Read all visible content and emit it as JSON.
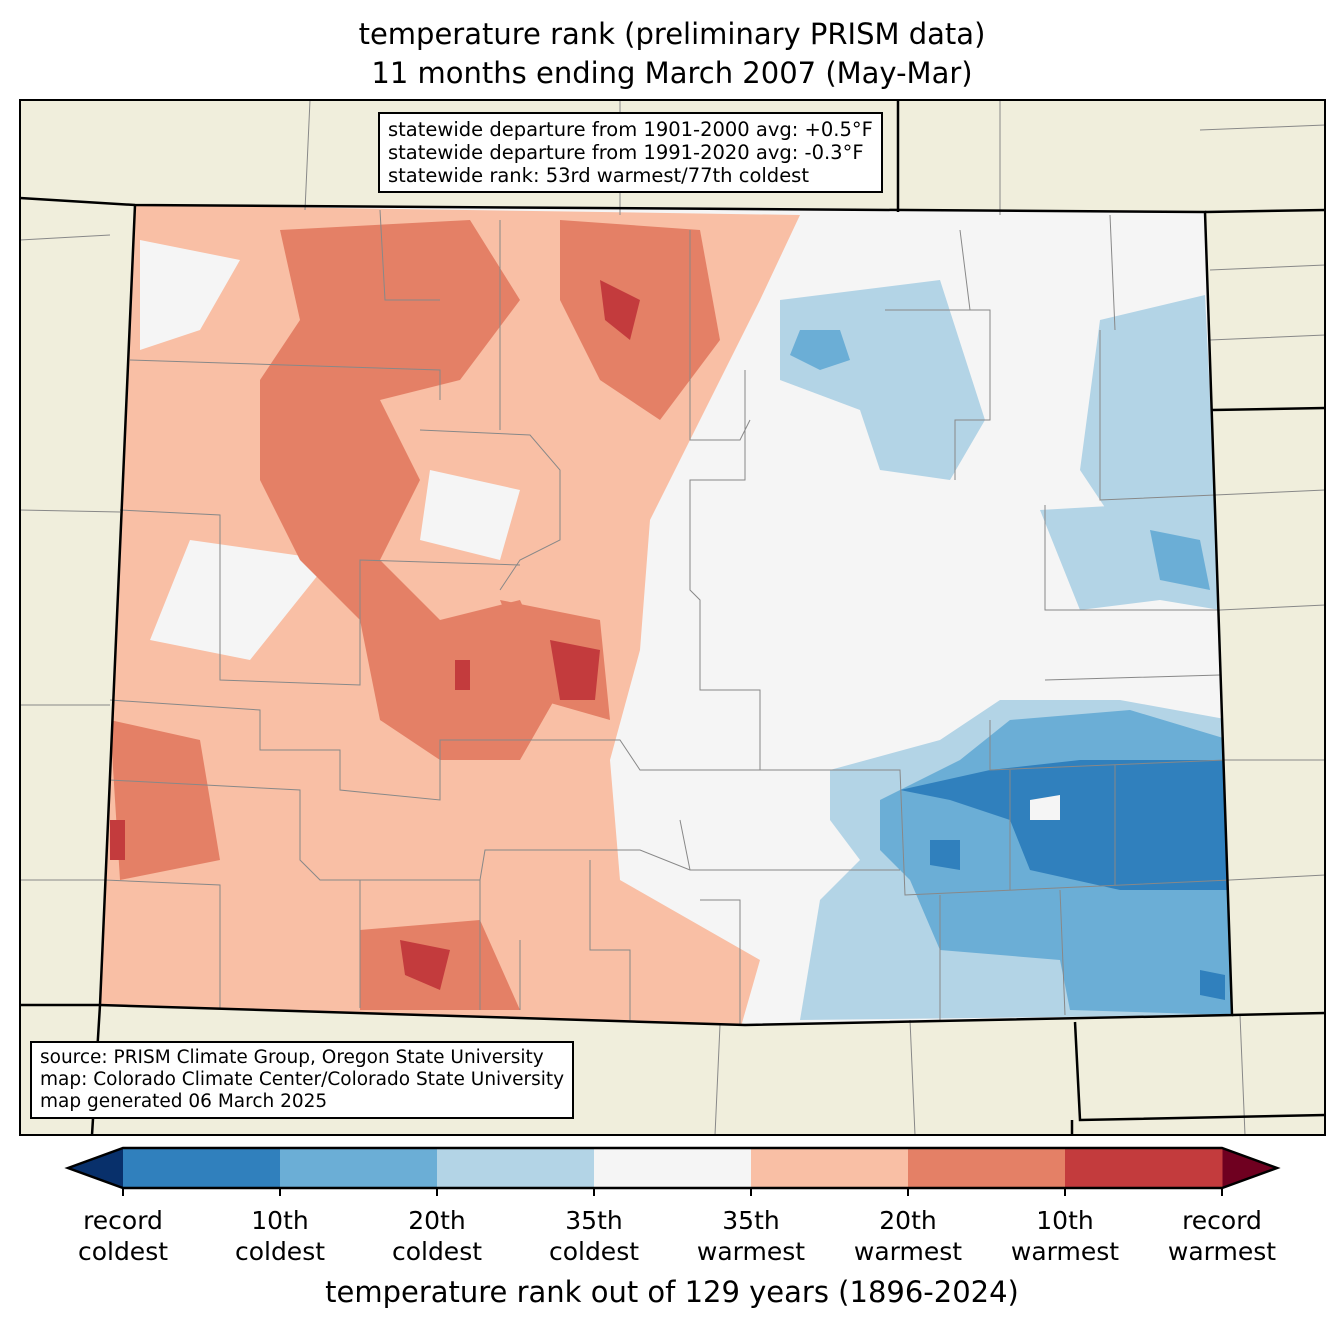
{
  "title": {
    "line1": "temperature rank (preliminary PRISM data)",
    "line2": "11 months ending March 2007 (May-Mar)"
  },
  "info_box": {
    "line1": "statewide departure from 1901-2000 avg: +0.5°F",
    "line2": "statewide departure from 1991-2020 avg: -0.3°F",
    "line3": "statewide rank: 53rd warmest/77th coldest"
  },
  "source_box": {
    "line1": "source: PRISM Climate Group, Oregon State University",
    "line2": "map: Colorado Climate Center/Colorado State University",
    "line3": "map generated 06 March 2025"
  },
  "colorbar": {
    "colors": [
      "#08306b",
      "#3080bd",
      "#6baed6",
      "#b3d4e6",
      "#f5f5f5",
      "#f9bfa5",
      "#e48066",
      "#c33b3d",
      "#6f0020"
    ],
    "ticks": [
      {
        "l1": "record",
        "l2": "coldest"
      },
      {
        "l1": "10th",
        "l2": "coldest"
      },
      {
        "l1": "20th",
        "l2": "coldest"
      },
      {
        "l1": "35th",
        "l2": "coldest"
      },
      {
        "l1": "35th",
        "l2": "warmest"
      },
      {
        "l1": "20th",
        "l2": "warmest"
      },
      {
        "l1": "10th",
        "l2": "warmest"
      },
      {
        "l1": "record",
        "l2": "warmest"
      }
    ],
    "label": "temperature rank out of 129 years (1896-2024)"
  }
}
